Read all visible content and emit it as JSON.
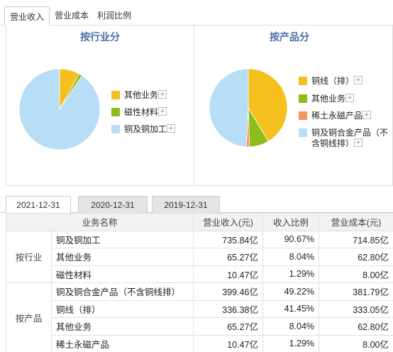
{
  "top_tabs": [
    "营业收入",
    "营业成本",
    "利润比例"
  ],
  "panel_left": {
    "title": "按行业分",
    "legend": [
      {
        "label": "其他业务",
        "color": "#f5bf1d"
      },
      {
        "label": "磁性材料",
        "color": "#8cbd1a"
      },
      {
        "label": "铜及铜加工",
        "color": "#b8ddf6"
      }
    ],
    "slices": [
      {
        "label": "其他业务",
        "value": 8.04,
        "color": "#f5bf1d"
      },
      {
        "label": "磁性材料",
        "value": 1.29,
        "color": "#8cbd1a"
      },
      {
        "label": "铜及铜加工",
        "value": 90.67,
        "color": "#b8ddf6"
      }
    ]
  },
  "panel_right": {
    "title": "按产品分",
    "legend": [
      {
        "label": "铜线（排）",
        "color": "#f5bf1d"
      },
      {
        "label": "其他业务",
        "color": "#8cbd1a"
      },
      {
        "label": "稀土永磁产品",
        "color": "#f4935a"
      },
      {
        "label": "铜及铜合金产品（不",
        "label2": "含铜线排）",
        "color": "#b8ddf6"
      }
    ],
    "slices": [
      {
        "label": "铜线（排）",
        "value": 41.45,
        "color": "#f5bf1d"
      },
      {
        "label": "其他业务",
        "value": 8.04,
        "color": "#8cbd1a"
      },
      {
        "label": "稀土永磁产品",
        "value": 1.29,
        "color": "#f4935a"
      },
      {
        "label": "铜及铜合金产品（不含铜线排）",
        "value": 49.22,
        "color": "#b8ddf6"
      }
    ]
  },
  "plus_symbol": "+",
  "date_tabs": [
    "2021-12-31",
    "2020-12-31",
    "2019-12-31"
  ],
  "table": {
    "headers": [
      "业务名称",
      "营业收入(元)",
      "收入比例",
      "营业成本(元)"
    ],
    "groups": [
      {
        "name": "按行业",
        "rows": [
          {
            "name": "铜及铜加工",
            "revenue": "735.84亿",
            "ratio": "90.67%",
            "cost": "714.85亿"
          },
          {
            "name": "其他业务",
            "revenue": "65.27亿",
            "ratio": "8.04%",
            "cost": "62.80亿"
          },
          {
            "name": "磁性材料",
            "revenue": "10.47亿",
            "ratio": "1.29%",
            "cost": "8.00亿"
          }
        ]
      },
      {
        "name": "按产品",
        "rows": [
          {
            "name": "铜及铜合金产品（不含铜线排）",
            "revenue": "399.46亿",
            "ratio": "49.22%",
            "cost": "381.79亿"
          },
          {
            "name": "铜线（排）",
            "revenue": "336.38亿",
            "ratio": "41.45%",
            "cost": "333.05亿"
          },
          {
            "name": "其他业务",
            "revenue": "65.27亿",
            "ratio": "8.04%",
            "cost": "62.80亿"
          },
          {
            "name": "稀土永磁产品",
            "revenue": "10.47亿",
            "ratio": "1.29%",
            "cost": "8.00亿"
          }
        ]
      }
    ]
  }
}
